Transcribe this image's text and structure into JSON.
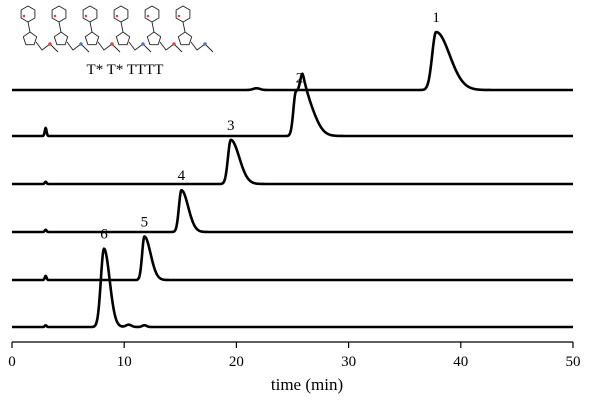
{
  "chart_data": {
    "type": "line",
    "xlabel": "time (min)",
    "xlim": [
      0,
      50
    ],
    "xticks": [
      0,
      10,
      20,
      30,
      40,
      50
    ],
    "inset_label": "T* T* TTTT",
    "traces": [
      {
        "label": "1",
        "peaks": [
          {
            "t": 37.8,
            "h": 1.0,
            "w": 0.35,
            "tail": 1.2
          },
          {
            "t": 21.8,
            "h": 0.03,
            "w": 0.3
          }
        ]
      },
      {
        "label": "2",
        "peaks": [
          {
            "t": 25.3,
            "h": 0.75,
            "w": 0.22,
            "tail": 0.5
          },
          {
            "t": 25.95,
            "h": 0.72,
            "w": 0.24,
            "tail": 0.9
          },
          {
            "t": 3.0,
            "h": 0.14,
            "w": 0.08
          }
        ]
      },
      {
        "label": "3",
        "peaks": [
          {
            "t": 19.5,
            "h": 0.76,
            "w": 0.25,
            "tail": 0.75
          },
          {
            "t": 3.0,
            "h": 0.04,
            "w": 0.08
          }
        ]
      },
      {
        "label": "4",
        "peaks": [
          {
            "t": 15.1,
            "h": 0.72,
            "w": 0.22,
            "tail": 0.6
          },
          {
            "t": 3.0,
            "h": 0.04,
            "w": 0.08
          }
        ]
      },
      {
        "label": "5",
        "peaks": [
          {
            "t": 11.8,
            "h": 0.75,
            "w": 0.2,
            "tail": 0.55
          },
          {
            "t": 3.0,
            "h": 0.07,
            "w": 0.08
          }
        ]
      },
      {
        "label": "6",
        "peaks": [
          {
            "t": 8.2,
            "h": 1.35,
            "w": 0.28,
            "tail": 0.5
          },
          {
            "t": 10.4,
            "h": 0.04,
            "w": 0.25
          },
          {
            "t": 11.8,
            "h": 0.03,
            "w": 0.2
          },
          {
            "t": 3.0,
            "h": 0.03,
            "w": 0.08
          }
        ]
      }
    ]
  }
}
